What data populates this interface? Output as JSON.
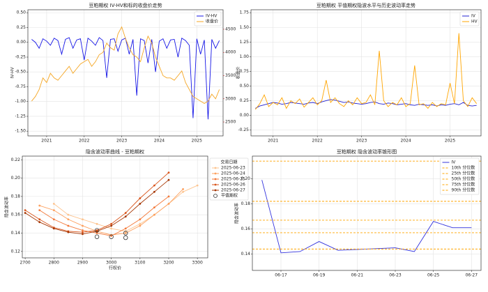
{
  "chart_data": [
    {
      "type": "line",
      "title": "豆粕期权 IV-HV和标的收盘价走势",
      "ylabel": "IV-HV",
      "y2label": "收盘价",
      "y2color": "#d62728",
      "x": [
        2020.6,
        2020.7,
        2020.8,
        2020.9,
        2021.0,
        2021.1,
        2021.2,
        2021.3,
        2021.4,
        2021.5,
        2021.6,
        2021.7,
        2021.8,
        2021.9,
        2022.0,
        2022.1,
        2022.2,
        2022.3,
        2022.4,
        2022.5,
        2022.6,
        2022.7,
        2022.8,
        2022.9,
        2023.0,
        2023.1,
        2023.2,
        2023.3,
        2023.4,
        2023.5,
        2023.6,
        2023.7,
        2023.8,
        2023.9,
        2024.0,
        2024.1,
        2024.2,
        2024.3,
        2024.4,
        2024.5,
        2024.6,
        2024.7,
        2024.8,
        2024.9,
        2025.0,
        2025.1,
        2025.2,
        2025.3,
        2025.4,
        2025.5,
        2025.6
      ],
      "series": [
        {
          "name": "IV-HV",
          "color": "#1515e6",
          "values": [
            0.05,
            0.0,
            -0.1,
            0.06,
            0.02,
            -0.05,
            0.07,
            0.03,
            -0.2,
            0.05,
            0.08,
            -0.1,
            0.04,
            0.06,
            -0.3,
            0.07,
            0.02,
            -0.05,
            0.08,
            0.03,
            -0.6,
            0.05,
            0.06,
            -0.15,
            0.04,
            0.07,
            -0.2,
            0.05,
            -0.9,
            0.06,
            0.03,
            -0.35,
            0.05,
            -0.5,
            0.02,
            0.06,
            -0.1,
            0.04,
            0.05,
            -0.25,
            0.07,
            0.03,
            -0.05,
            -1.28,
            0.06,
            -0.2,
            0.04,
            -1.3,
            0.05,
            -0.1,
            0.03
          ]
        },
        {
          "name": "收盘价",
          "color": "#f5a623",
          "axis": "y2",
          "values": [
            2950,
            3050,
            3200,
            3450,
            3350,
            3550,
            3450,
            3400,
            3500,
            3600,
            3700,
            3550,
            3650,
            3750,
            3800,
            3850,
            3700,
            3800,
            3950,
            4000,
            4200,
            4100,
            4050,
            4400,
            4550,
            4300,
            4100,
            3950,
            3900,
            3800,
            4100,
            4350,
            4200,
            3900,
            3700,
            3500,
            3450,
            3450,
            3400,
            3500,
            3600,
            3350,
            3200,
            3050,
            3000,
            2950,
            2900,
            2950,
            3100,
            3000,
            3200
          ]
        }
      ],
      "xlim": [
        2020.5,
        2025.7
      ],
      "xticks": [
        2021,
        2022,
        2023,
        2024,
        2025
      ],
      "ylim": [
        -1.58,
        0.55
      ],
      "yticks": [
        {
          "value": -1.5,
          "label": "-1.50"
        },
        -1.25,
        {
          "value": -1,
          "label": "-1.00"
        },
        -0.75,
        {
          "value": -0.5,
          "label": "-0.50"
        },
        -0.25,
        {
          "value": 0,
          "label": "0.00"
        },
        0.25,
        {
          "value": 0.5,
          "label": "0.50"
        }
      ],
      "y2lim": [
        2200,
        4920
      ],
      "y2ticks": [
        2500,
        3000,
        3500,
        4000,
        4500
      ],
      "grid": true,
      "legend": "upper right"
    },
    {
      "type": "line",
      "title": "豆粕期权 平值期权隐波水平与历史波动率走势",
      "x": [
        2020.6,
        2020.7,
        2020.8,
        2020.9,
        2021.0,
        2021.1,
        2021.2,
        2021.3,
        2021.4,
        2021.5,
        2021.6,
        2021.7,
        2021.8,
        2021.9,
        2022.0,
        2022.1,
        2022.2,
        2022.3,
        2022.4,
        2022.5,
        2022.6,
        2022.7,
        2022.8,
        2022.9,
        2023.0,
        2023.1,
        2023.2,
        2023.3,
        2023.4,
        2023.5,
        2023.6,
        2023.7,
        2023.8,
        2023.9,
        2024.0,
        2024.1,
        2024.2,
        2024.3,
        2024.4,
        2024.5,
        2024.6,
        2024.7,
        2024.8,
        2024.9,
        2025.0,
        2025.1,
        2025.2,
        2025.3,
        2025.4,
        2025.5,
        2025.6
      ],
      "series": [
        {
          "name": "IV",
          "color": "#2020d0",
          "values": [
            0.12,
            0.16,
            0.18,
            0.2,
            0.22,
            0.21,
            0.19,
            0.2,
            0.22,
            0.21,
            0.2,
            0.19,
            0.21,
            0.22,
            0.2,
            0.23,
            0.25,
            0.27,
            0.26,
            0.24,
            0.22,
            0.23,
            0.21,
            0.2,
            0.19,
            0.2,
            0.22,
            0.23,
            0.2,
            0.19,
            0.21,
            0.2,
            0.18,
            0.19,
            0.2,
            0.18,
            0.17,
            0.19,
            0.18,
            0.17,
            0.18,
            0.16,
            0.18,
            0.17,
            0.19,
            0.2,
            0.18,
            0.22,
            0.17,
            0.16,
            0.17
          ]
        },
        {
          "name": "HV",
          "color": "#ffa500",
          "values": [
            0.1,
            0.2,
            0.35,
            0.15,
            0.22,
            0.18,
            0.3,
            0.12,
            0.25,
            0.2,
            0.28,
            0.14,
            0.22,
            0.3,
            0.18,
            0.25,
            0.6,
            0.22,
            0.3,
            0.2,
            0.15,
            0.25,
            0.18,
            0.3,
            0.2,
            0.22,
            0.35,
            0.18,
            1.1,
            0.25,
            0.15,
            0.22,
            0.18,
            0.3,
            0.15,
            0.2,
            0.85,
            0.18,
            0.2,
            0.12,
            0.22,
            0.15,
            0.2,
            0.18,
            0.55,
            0.2,
            1.4,
            0.25,
            0.15,
            0.3,
            0.2
          ]
        }
      ],
      "xlim": [
        2020.5,
        2025.7
      ],
      "xticks": [
        2021,
        2022,
        2023,
        2024,
        2025
      ],
      "ylim": [
        -0.35,
        1.8
      ],
      "yticks": [
        -0.25,
        {
          "value": 0,
          "label": "0.00"
        },
        0.25,
        {
          "value": 0.5,
          "label": "0.50"
        },
        0.75,
        {
          "value": 1,
          "label": "1.00"
        },
        1.25,
        {
          "value": 1.5,
          "label": "1.50"
        },
        1.75
      ],
      "grid": true,
      "legend": "upper right"
    },
    {
      "type": "line",
      "title": "隐含波动率曲线 - 豆粕期权",
      "xlabel": "行权价",
      "ylabel": "隐含波动率",
      "legend_title": "交易日期",
      "x": [
        2700,
        2750,
        2800,
        2850,
        2900,
        2950,
        3000,
        3050,
        3100,
        3150,
        3200,
        3250,
        3300
      ],
      "series": [
        {
          "name": "2025-06-23",
          "color": "#fdc48f",
          "marker": "dot",
          "values": [
            null,
            null,
            0.172,
            0.16,
            0.155,
            0.15,
            0.145,
            0.142,
            0.15,
            0.16,
            0.172,
            0.185,
            0.192
          ]
        },
        {
          "name": "2025-06-24",
          "color": "#fda05e",
          "marker": "dot",
          "values": [
            null,
            0.17,
            0.165,
            0.155,
            0.148,
            0.142,
            0.138,
            0.14,
            0.148,
            0.16,
            0.172,
            0.188,
            null
          ]
        },
        {
          "name": "2025-06-25",
          "color": "#f3793a",
          "marker": "dot",
          "values": [
            null,
            0.165,
            0.155,
            0.148,
            0.143,
            0.14,
            0.137,
            0.145,
            0.155,
            0.168,
            0.18,
            null,
            null
          ]
        },
        {
          "name": "2025-06-26",
          "color": "#d9541a",
          "marker": "dot",
          "values": [
            0.165,
            0.155,
            0.146,
            0.142,
            0.141,
            0.143,
            0.15,
            0.162,
            0.178,
            0.192,
            0.206,
            null,
            null
          ]
        },
        {
          "name": "2025-06-27",
          "color": "#a63603",
          "marker": "dot",
          "values": [
            0.162,
            0.152,
            0.145,
            0.141,
            0.139,
            0.142,
            0.148,
            0.158,
            0.172,
            0.185,
            0.198,
            null,
            null
          ]
        },
        {
          "name": "平值期权",
          "color": "#333333",
          "marker": "ring",
          "line": false,
          "x": [
            2950,
            2950,
            3000,
            3050,
            3050
          ],
          "values": [
            0.143,
            0.136,
            0.136,
            0.14,
            0.135
          ]
        }
      ],
      "xlim": [
        2690,
        3336
      ],
      "xticks": [
        2700,
        2800,
        2900,
        3000,
        3100,
        3200,
        3300
      ],
      "ylim": [
        0.113,
        0.224
      ],
      "yticks": [
        0.12,
        0.14,
        0.16,
        0.18,
        {
          "value": 0.2,
          "label": "0.20"
        },
        0.22
      ],
      "grid": true,
      "legend": "outside right"
    },
    {
      "type": "line",
      "title": "豆粕期权 隐含波动率锥形图",
      "ylabel": "隐含波动率",
      "x": [
        16,
        17,
        18,
        19,
        20,
        23,
        24,
        25,
        26,
        27
      ],
      "series": [
        {
          "name": "IV",
          "color": "#3333dd",
          "values": [
            0.199,
            0.141,
            0.142,
            0.15,
            0.143,
            0.145,
            0.142,
            0.166,
            0.161,
            0.161
          ]
        },
        {
          "name": "10th 分位数",
          "color": "#ffa500",
          "dash": true,
          "value": 0.144
        },
        {
          "name": "25th 分位数",
          "color": "#ffa500",
          "dash": true,
          "value": 0.157
        },
        {
          "name": "50th 分位数",
          "color": "#ffa500",
          "dash": true,
          "value": 0.167
        },
        {
          "name": "75th 分位数",
          "color": "#ffa500",
          "dash": true,
          "value": 0.182
        },
        {
          "name": "90th 分位数",
          "color": "#ffa500",
          "dash": true,
          "value": 0.214
        }
      ],
      "xlim": [
        15.5,
        27.5
      ],
      "xticks": [
        {
          "value": 17,
          "label": "06-17"
        },
        {
          "value": 19,
          "label": "06-19"
        },
        {
          "value": 21,
          "label": "06-21"
        },
        {
          "value": 23,
          "label": "06-23"
        },
        {
          "value": 25,
          "label": "06-25"
        },
        {
          "value": 27,
          "label": "06-27"
        }
      ],
      "ylim": [
        0.127,
        0.218
      ],
      "yticks": [
        0.14,
        0.16,
        0.18,
        {
          "value": 0.2,
          "label": "0.20"
        }
      ],
      "grid": true,
      "legend": "upper right"
    }
  ]
}
